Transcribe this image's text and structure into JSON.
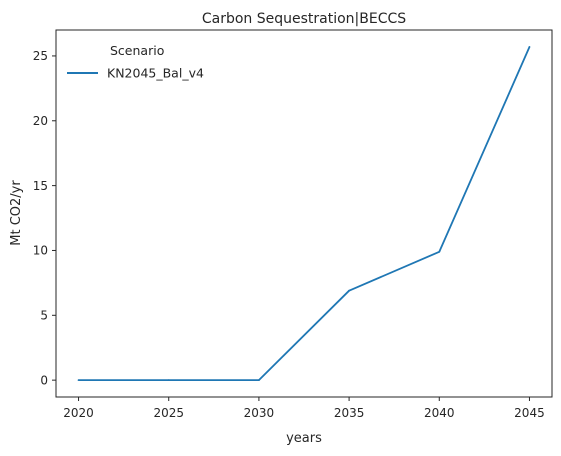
{
  "chart_data": {
    "type": "line",
    "title": "Carbon Sequestration|BECCS",
    "xlabel": "years",
    "ylabel": "Mt CO2/yr",
    "x": [
      2020,
      2025,
      2030,
      2035,
      2040,
      2045
    ],
    "xticks": [
      2020,
      2025,
      2030,
      2035,
      2040,
      2045
    ],
    "yticks": [
      0,
      5,
      10,
      15,
      20,
      25
    ],
    "xlim": [
      2018.75,
      2046.25
    ],
    "ylim": [
      -1.3,
      27.0
    ],
    "grid": false,
    "legend": {
      "title": "Scenario",
      "placement": "top-left"
    },
    "series": [
      {
        "name": "KN2045_Bal_v4",
        "color": "#1f77b4",
        "values": [
          0,
          0,
          0,
          6.9,
          9.9,
          25.7
        ]
      }
    ]
  }
}
